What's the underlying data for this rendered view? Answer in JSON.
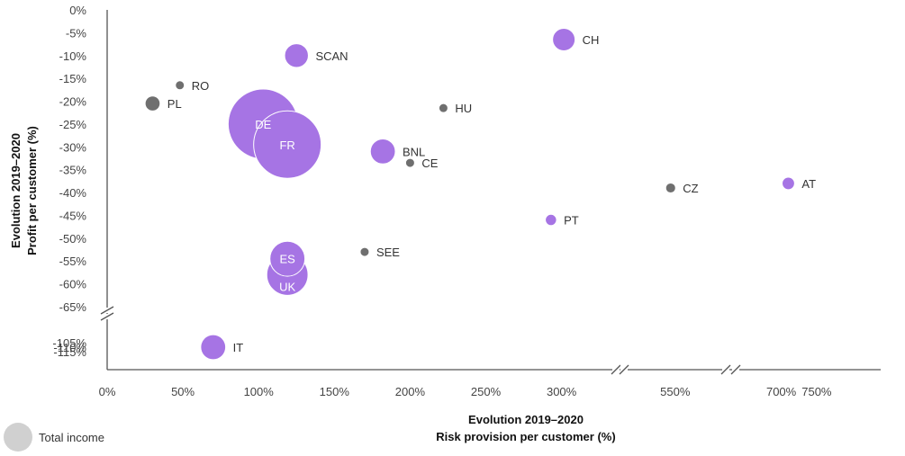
{
  "chart_data": {
    "type": "scatter",
    "x_axis_title_line1": "Evolution 2019–2020",
    "x_axis_title_line2": "Risk provision per customer (%)",
    "y_axis_title_line1": "Evolution 2019–2020",
    "y_axis_title_line2": "Profit per customer (%)",
    "x_ticks": [
      "0%",
      "50%",
      "100%",
      "150%",
      "200%",
      "250%",
      "300%",
      "550%",
      "700%",
      "750%"
    ],
    "y_ticks": [
      "0%",
      "-5%",
      "-10%",
      "-15%",
      "-20%",
      "-25%",
      "-30%",
      "-35%",
      "-40%",
      "-45%",
      "-50%",
      "-55%",
      "-60%",
      "-65%",
      "-105%",
      "-110%",
      "-115%"
    ],
    "axis_breaks": "x axis broken after 300% and between 550% and 700%; y axis broken between -65% and -105%",
    "legend": {
      "label": "Total income",
      "color": "#d0d0d0"
    },
    "series_colors": {
      "highlight": "#a674e4",
      "other": "#6f6f6f"
    },
    "points": [
      {
        "label": "CH",
        "x": 305,
        "y": -6.5,
        "size": 0.18,
        "group": "highlight"
      },
      {
        "label": "SCAN",
        "x": 125,
        "y": -10,
        "size": 0.19,
        "group": "highlight"
      },
      {
        "label": "RO",
        "x": 48,
        "y": -16.5,
        "size": 0.06,
        "group": "other"
      },
      {
        "label": "PL",
        "x": 30,
        "y": -20.5,
        "size": 0.12,
        "group": "other"
      },
      {
        "label": "HU",
        "x": 222,
        "y": -21.5,
        "size": 0.07,
        "group": "other"
      },
      {
        "label": "DE",
        "x": 103,
        "y": -25,
        "size": 0.56,
        "group": "highlight"
      },
      {
        "label": "FR",
        "x": 119,
        "y": -29.5,
        "size": 0.54,
        "group": "highlight"
      },
      {
        "label": "BNL",
        "x": 182,
        "y": -31,
        "size": 0.2,
        "group": "highlight"
      },
      {
        "label": "CE",
        "x": 200,
        "y": -33.5,
        "size": 0.06,
        "group": "other"
      },
      {
        "label": "CZ",
        "x": 540,
        "y": -39,
        "size": 0.08,
        "group": "other"
      },
      {
        "label": "AT",
        "x": 710,
        "y": -38,
        "size": 0.1,
        "group": "highlight"
      },
      {
        "label": "PT",
        "x": 293,
        "y": -46,
        "size": 0.09,
        "group": "highlight"
      },
      {
        "label": "SEE",
        "x": 170,
        "y": -53,
        "size": 0.05,
        "group": "other"
      },
      {
        "label": "ES",
        "x": 119,
        "y": -54.5,
        "size": 0.28,
        "group": "highlight"
      },
      {
        "label": "UK",
        "x": 119,
        "y": -58,
        "size": 0.33,
        "group": "highlight"
      },
      {
        "label": "IT",
        "x": 70,
        "y": -110,
        "size": 0.2,
        "group": "highlight"
      }
    ]
  }
}
